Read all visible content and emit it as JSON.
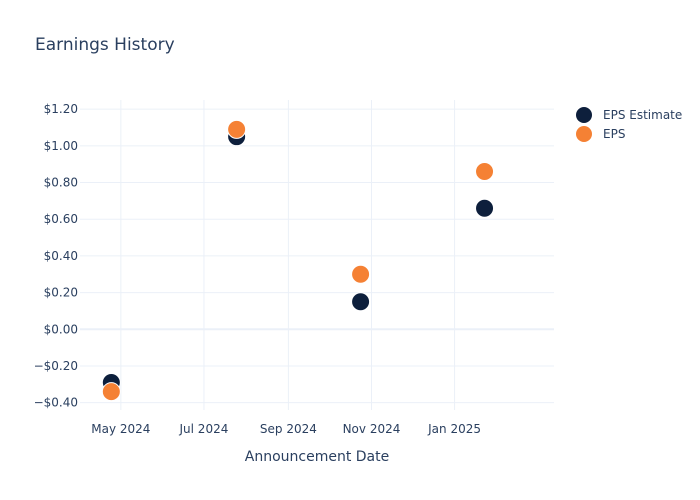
{
  "chart_data": {
    "type": "scatter",
    "title": "Earnings History",
    "xlabel": "Announcement Date",
    "ylabel": "",
    "x_type": "date",
    "xlim": [
      "2024-04-01",
      "2025-03-15"
    ],
    "ylim": [
      -0.44,
      1.25
    ],
    "x_ticks": [
      {
        "date": "2024-05-01",
        "label": "May 2024"
      },
      {
        "date": "2024-07-01",
        "label": "Jul 2024"
      },
      {
        "date": "2024-09-01",
        "label": "Sep 2024"
      },
      {
        "date": "2024-11-01",
        "label": "Nov 2024"
      },
      {
        "date": "2025-01-01",
        "label": "Jan 2025"
      }
    ],
    "y_ticks": [
      {
        "value": 1.2,
        "label": "$1.20"
      },
      {
        "value": 1.0,
        "label": "$1.00"
      },
      {
        "value": 0.8,
        "label": "$0.80"
      },
      {
        "value": 0.6,
        "label": "$0.60"
      },
      {
        "value": 0.4,
        "label": "$0.40"
      },
      {
        "value": 0.2,
        "label": "$0.20"
      },
      {
        "value": 0.0,
        "label": "$0.00"
      },
      {
        "value": -0.2,
        "label": "−$0.20"
      },
      {
        "value": -0.4,
        "label": "−$0.40"
      }
    ],
    "grid": true,
    "legend_position": "top-right",
    "series": [
      {
        "name": "EPS Estimate",
        "color": "#0d1f3c",
        "points": [
          {
            "x": "2024-04-24",
            "y": -0.29
          },
          {
            "x": "2024-07-25",
            "y": 1.05
          },
          {
            "x": "2024-10-24",
            "y": 0.15
          },
          {
            "x": "2025-01-23",
            "y": 0.66
          }
        ]
      },
      {
        "name": "EPS",
        "color": "#f58134",
        "points": [
          {
            "x": "2024-04-24",
            "y": -0.34
          },
          {
            "x": "2024-07-25",
            "y": 1.09
          },
          {
            "x": "2024-10-24",
            "y": 0.3
          },
          {
            "x": "2025-01-23",
            "y": 0.86
          }
        ]
      }
    ]
  }
}
